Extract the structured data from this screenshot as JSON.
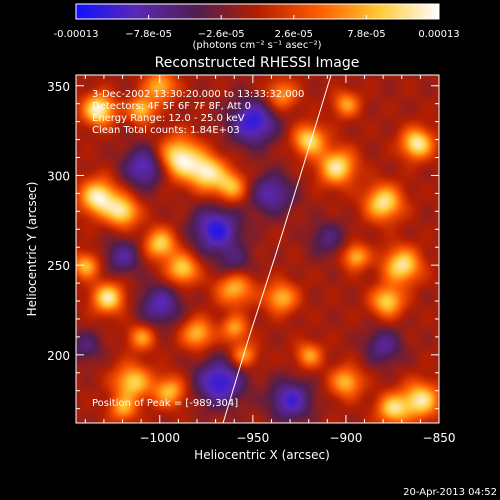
{
  "chart_data": {
    "type": "heatmap",
    "title": "Reconstructed RHESSI Image",
    "xlabel": "Heliocentric X (arcsec)",
    "ylabel": "Heliocentric Y (arcsec)",
    "x_ticks": [
      -1000,
      -950,
      -900,
      -850
    ],
    "x_tick_labels": [
      "−1000",
      "−950",
      "−900",
      "−850"
    ],
    "y_ticks": [
      200,
      250,
      300,
      350
    ],
    "y_tick_labels": [
      "200",
      "250",
      "300",
      "350"
    ],
    "xlim": [
      -1045,
      -850
    ],
    "ylim": [
      162,
      356
    ],
    "colorbar": {
      "ticks": [
        -0.00013,
        -7.8e-05,
        -2.6e-05,
        2.6e-05,
        7.8e-05,
        0.00013
      ],
      "tick_labels": [
        "-0.00013",
        "−7.8e-05",
        "−2.6e-05",
        "2.6e-05",
        "7.8e-05",
        "0.00013"
      ],
      "range": [
        -0.00013,
        0.00013
      ],
      "unit_label": "(photons cm⁻² s⁻¹ asec⁻²)",
      "colors": [
        "#1010ff",
        "#5a28b4",
        "#501e50",
        "#b41e00",
        "#ff5a00",
        "#ffc832",
        "#ffffff"
      ]
    },
    "annotations": {
      "time": "3-Dec-2002 13:30:20.000 to 13:33:32.000",
      "detectors": "Detectors: 4F 5F 6F 7F 8F, Att 0",
      "energy": "Energy Range: 12.0 - 25.0 keV",
      "clean": "Clean     Total counts: 1.84E+03",
      "peak": "Position of Peak = [-989,304]"
    },
    "peak": [
      -989,
      304
    ],
    "limb_points": [
      [
        -966,
        162
      ],
      [
        -952,
        210
      ],
      [
        -938,
        255
      ],
      [
        -923,
        305
      ],
      [
        -908,
        356
      ]
    ],
    "grid": false,
    "sources": [
      {
        "x": -1033,
        "y": 337,
        "amp": 1.0,
        "w": 6
      },
      {
        "x": -1010,
        "y": 337,
        "amp": 0.75,
        "w": 5
      },
      {
        "x": -1000,
        "y": 350,
        "amp": 0.7,
        "w": 6
      },
      {
        "x": -990,
        "y": 310,
        "amp": 1.0,
        "w": 8
      },
      {
        "x": -975,
        "y": 302,
        "amp": 0.9,
        "w": 7
      },
      {
        "x": -962,
        "y": 294,
        "amp": 0.7,
        "w": 6
      },
      {
        "x": -1033,
        "y": 288,
        "amp": 1.0,
        "w": 7
      },
      {
        "x": -1020,
        "y": 280,
        "amp": 0.85,
        "w": 6
      },
      {
        "x": -1000,
        "y": 262,
        "amp": 0.8,
        "w": 6
      },
      {
        "x": -988,
        "y": 248,
        "amp": 0.8,
        "w": 6
      },
      {
        "x": -960,
        "y": 238,
        "amp": 0.75,
        "w": 7
      },
      {
        "x": -935,
        "y": 232,
        "amp": 0.7,
        "w": 6
      },
      {
        "x": -980,
        "y": 212,
        "amp": 0.7,
        "w": 6
      },
      {
        "x": -960,
        "y": 215,
        "amp": 0.6,
        "w": 5
      },
      {
        "x": -1010,
        "y": 210,
        "amp": 0.6,
        "w": 5
      },
      {
        "x": -1015,
        "y": 185,
        "amp": 0.8,
        "w": 7
      },
      {
        "x": -995,
        "y": 180,
        "amp": 0.7,
        "w": 6
      },
      {
        "x": -955,
        "y": 200,
        "amp": 0.6,
        "w": 5
      },
      {
        "x": -920,
        "y": 320,
        "amp": 0.85,
        "w": 6
      },
      {
        "x": -905,
        "y": 305,
        "amp": 0.9,
        "w": 7
      },
      {
        "x": -880,
        "y": 285,
        "amp": 0.9,
        "w": 7
      },
      {
        "x": -862,
        "y": 318,
        "amp": 0.95,
        "w": 6
      },
      {
        "x": -870,
        "y": 250,
        "amp": 0.9,
        "w": 7
      },
      {
        "x": -878,
        "y": 230,
        "amp": 0.8,
        "w": 6
      },
      {
        "x": -895,
        "y": 255,
        "amp": 0.7,
        "w": 5
      },
      {
        "x": -860,
        "y": 175,
        "amp": 0.9,
        "w": 7
      },
      {
        "x": -875,
        "y": 170,
        "amp": 0.8,
        "w": 6
      },
      {
        "x": -900,
        "y": 185,
        "amp": 0.7,
        "w": 6
      },
      {
        "x": -920,
        "y": 200,
        "amp": 0.6,
        "w": 5
      },
      {
        "x": -1028,
        "y": 232,
        "amp": 0.9,
        "w": 6
      },
      {
        "x": -1040,
        "y": 250,
        "amp": 0.7,
        "w": 5
      },
      {
        "x": -935,
        "y": 345,
        "amp": 0.6,
        "w": 6
      },
      {
        "x": -900,
        "y": 340,
        "amp": 0.6,
        "w": 5
      },
      {
        "x": -1020,
        "y": 170,
        "amp": 0.6,
        "w": 5
      },
      {
        "x": -1008,
        "y": 305,
        "amp": -0.7,
        "w": 8
      },
      {
        "x": -950,
        "y": 330,
        "amp": -0.8,
        "w": 9
      },
      {
        "x": -940,
        "y": 290,
        "amp": -0.6,
        "w": 8
      },
      {
        "x": -970,
        "y": 270,
        "amp": -0.8,
        "w": 9
      },
      {
        "x": -1020,
        "y": 255,
        "amp": -0.5,
        "w": 7
      },
      {
        "x": -968,
        "y": 185,
        "amp": -0.8,
        "w": 9
      },
      {
        "x": -930,
        "y": 175,
        "amp": -0.7,
        "w": 8
      },
      {
        "x": -880,
        "y": 205,
        "amp": -0.5,
        "w": 7
      },
      {
        "x": -1000,
        "y": 228,
        "amp": -0.6,
        "w": 8
      },
      {
        "x": -960,
        "y": 250,
        "amp": -0.4,
        "w": 7
      },
      {
        "x": -910,
        "y": 265,
        "amp": -0.4,
        "w": 7
      },
      {
        "x": -1040,
        "y": 205,
        "amp": -0.4,
        "w": 6
      }
    ]
  },
  "footer": {
    "timestamp": "20-Apr-2013 04:52"
  }
}
